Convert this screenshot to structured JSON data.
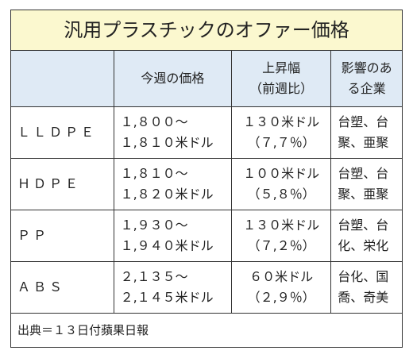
{
  "table": {
    "title": "汎用プラスチックのオファー価格",
    "header": [
      [],
      [
        "今週の価格"
      ],
      [
        "上昇幅",
        "（前週比）"
      ],
      [
        "影響のあ",
        "る企業"
      ]
    ],
    "rows": [
      [
        [
          "ＬＬＤＰＥ"
        ],
        [
          "１,８００～",
          "１,８１０米ドル"
        ],
        [
          "１３０米ドル",
          "（７,７％）"
        ],
        [
          "台塑、台",
          "聚、亜聚"
        ]
      ],
      [
        [
          "ＨＤＰＥ"
        ],
        [
          "１,８１０～",
          "１,８２０米ドル"
        ],
        [
          "１００米ドル",
          "（５,８％）"
        ],
        [
          "台塑、台",
          "聚、亜聚"
        ]
      ],
      [
        [
          "ＰＰ"
        ],
        [
          "１,９３０～",
          "１,９４０米ドル"
        ],
        [
          "１３０米ドル",
          "（７,２％）"
        ],
        [
          "台塑、台",
          "化、栄化"
        ]
      ],
      [
        [
          "ＡＢＳ"
        ],
        [
          "２,１３５～",
          "２,１４５米ドル"
        ],
        [
          "６０米ドル",
          "（２,９％）"
        ],
        [
          "台化、国",
          "喬、奇美"
        ]
      ]
    ],
    "source": "出典＝１３日付蘋果日報"
  }
}
